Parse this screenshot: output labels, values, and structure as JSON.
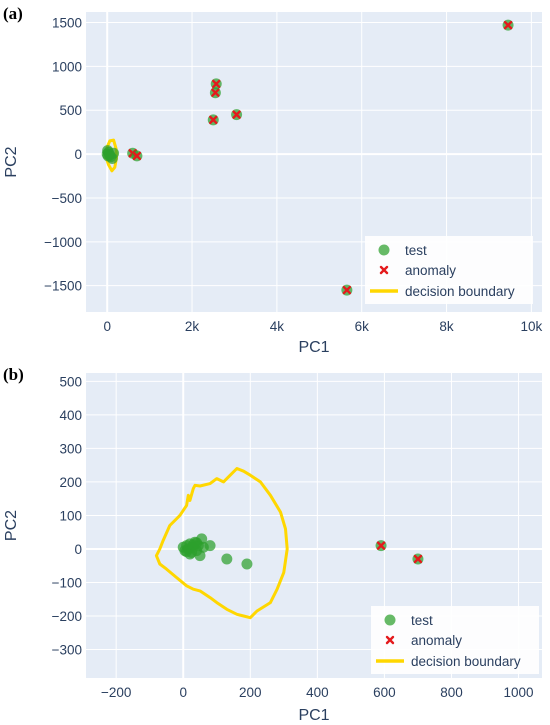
{
  "chart_data": [
    {
      "panel_label": "(a)",
      "type": "scatter",
      "xlabel": "PC1",
      "ylabel": "PC2",
      "xlim": [
        -500,
        10250
      ],
      "ylim": [
        -1800,
        1620
      ],
      "xticks": [
        0,
        2000,
        4000,
        6000,
        8000,
        10000
      ],
      "xtick_labels": [
        "0",
        "2k",
        "4k",
        "6k",
        "8k",
        "10k"
      ],
      "yticks": [
        -1500,
        -1000,
        -500,
        0,
        500,
        1000,
        1500
      ],
      "ytick_labels": [
        "−1500",
        "−1000",
        "−500",
        "0",
        "500",
        "1000",
        "1500"
      ],
      "grid": true,
      "legend_position": "bottom-right",
      "series": [
        {
          "name": "test",
          "color": "#2ca02c",
          "points": [
            [
              0,
              0
            ],
            [
              30,
              20
            ],
            [
              60,
              -10
            ],
            [
              10,
              40
            ],
            [
              80,
              -30
            ],
            [
              120,
              -50
            ],
            [
              150,
              10
            ],
            [
              20,
              -20
            ]
          ]
        },
        {
          "name": "anomaly",
          "color": "#e41a1c",
          "points": [
            [
              600,
              10
            ],
            [
              700,
              -20
            ],
            [
              2500,
              390
            ],
            [
              2550,
              700
            ],
            [
              2570,
              800
            ],
            [
              3050,
              450
            ],
            [
              5650,
              -1550
            ],
            [
              9450,
              1470
            ]
          ]
        },
        {
          "name": "decision boundary",
          "color": "#ffd700",
          "points": [
            [
              0,
              80
            ],
            [
              60,
              150
            ],
            [
              150,
              160
            ],
            [
              210,
              60
            ],
            [
              220,
              -40
            ],
            [
              180,
              -150
            ],
            [
              110,
              -190
            ],
            [
              30,
              -120
            ],
            [
              -30,
              -30
            ],
            [
              -20,
              40
            ],
            [
              0,
              80
            ]
          ]
        }
      ]
    },
    {
      "panel_label": "(b)",
      "type": "scatter",
      "xlabel": "PC1",
      "ylabel": "PC2",
      "xlim": [
        -290,
        1070
      ],
      "ylim": [
        -385,
        525
      ],
      "xticks": [
        -200,
        0,
        200,
        400,
        600,
        800,
        1000
      ],
      "xtick_labels": [
        "−200",
        "0",
        "200",
        "400",
        "600",
        "800",
        "1000"
      ],
      "yticks": [
        -300,
        -200,
        -100,
        0,
        100,
        200,
        300,
        400,
        500
      ],
      "ytick_labels": [
        "−300",
        "−200",
        "−100",
        "0",
        "100",
        "200",
        "300",
        "400",
        "500"
      ],
      "grid": true,
      "legend_position": "bottom-right",
      "series": [
        {
          "name": "test",
          "color": "#2ca02c",
          "points": [
            [
              0,
              5
            ],
            [
              5,
              -5
            ],
            [
              10,
              10
            ],
            [
              15,
              0
            ],
            [
              20,
              15
            ],
            [
              25,
              -10
            ],
            [
              30,
              5
            ],
            [
              35,
              20
            ],
            [
              40,
              -5
            ],
            [
              45,
              10
            ],
            [
              50,
              -20
            ],
            [
              55,
              30
            ],
            [
              20,
              -15
            ],
            [
              10,
              -8
            ],
            [
              30,
              12
            ],
            [
              40,
              18
            ],
            [
              60,
              5
            ],
            [
              80,
              10
            ],
            [
              130,
              -30
            ],
            [
              190,
              -45
            ]
          ]
        },
        {
          "name": "anomaly",
          "color": "#e41a1c",
          "points": [
            [
              590,
              10
            ],
            [
              700,
              -30
            ]
          ]
        },
        {
          "name": "decision boundary",
          "color": "#ffd700",
          "points": [
            [
              -60,
              25
            ],
            [
              -40,
              70
            ],
            [
              -10,
              100
            ],
            [
              10,
              130
            ],
            [
              15,
              160
            ],
            [
              20,
              145
            ],
            [
              30,
              180
            ],
            [
              35,
              190
            ],
            [
              50,
              188
            ],
            [
              80,
              195
            ],
            [
              100,
              210
            ],
            [
              120,
              200
            ],
            [
              140,
              220
            ],
            [
              160,
              240
            ],
            [
              180,
              232
            ],
            [
              200,
              220
            ],
            [
              230,
              200
            ],
            [
              260,
              160
            ],
            [
              290,
              110
            ],
            [
              305,
              60
            ],
            [
              310,
              0
            ],
            [
              300,
              -70
            ],
            [
              280,
              -120
            ],
            [
              260,
              -160
            ],
            [
              220,
              -185
            ],
            [
              200,
              -205
            ],
            [
              180,
              -200
            ],
            [
              160,
              -195
            ],
            [
              130,
              -180
            ],
            [
              100,
              -160
            ],
            [
              80,
              -145
            ],
            [
              50,
              -125
            ],
            [
              30,
              -120
            ],
            [
              10,
              -110
            ],
            [
              -20,
              -85
            ],
            [
              -50,
              -60
            ],
            [
              -70,
              -45
            ],
            [
              -80,
              -20
            ],
            [
              -70,
              0
            ],
            [
              -60,
              25
            ]
          ]
        }
      ]
    }
  ]
}
